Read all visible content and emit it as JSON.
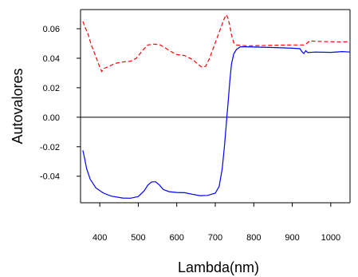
{
  "chart_data": {
    "type": "line",
    "title": "",
    "xlabel": "Lambda(nm)",
    "ylabel": "Autovalores",
    "xlim": [
      350,
      1050
    ],
    "ylim": [
      -0.058,
      0.073
    ],
    "grid": false,
    "legend": "none",
    "reference_line": {
      "y": 0.0,
      "color": "#000000"
    },
    "x_ticks": [
      {
        "value": 400,
        "label": "400"
      },
      {
        "value": 500,
        "label": "500"
      },
      {
        "value": 600,
        "label": "600"
      },
      {
        "value": 700,
        "label": "700"
      },
      {
        "value": 800,
        "label": "800"
      },
      {
        "value": 900,
        "label": "900"
      },
      {
        "value": 1000,
        "label": "1000"
      }
    ],
    "y_ticks": [
      {
        "value": 0.06,
        "label": "0.06"
      },
      {
        "value": 0.04,
        "label": "0.04"
      },
      {
        "value": 0.02,
        "label": "0.02"
      },
      {
        "value": 0.0,
        "label": "0.00"
      },
      {
        "value": -0.02,
        "label": "-0.02"
      },
      {
        "value": -0.04,
        "label": "-0.04"
      }
    ],
    "series": [
      {
        "color": "#0000ff",
        "style": "solid",
        "x": [
          356,
          360,
          366,
          375,
          390,
          410,
          430,
          460,
          480,
          500,
          515,
          525,
          535,
          545,
          555,
          565,
          580,
          600,
          620,
          640,
          660,
          680,
          700,
          710,
          718,
          724,
          730,
          734,
          738,
          742,
          748,
          755,
          765,
          780,
          800,
          850,
          900,
          920,
          925,
          930,
          935,
          940,
          960,
          1000,
          1030,
          1050
        ],
        "y": [
          -0.0225,
          -0.027,
          -0.035,
          -0.042,
          -0.048,
          -0.0515,
          -0.0535,
          -0.0548,
          -0.0549,
          -0.0538,
          -0.05,
          -0.046,
          -0.0438,
          -0.0438,
          -0.046,
          -0.049,
          -0.0505,
          -0.051,
          -0.0512,
          -0.0522,
          -0.0532,
          -0.053,
          -0.0515,
          -0.047,
          -0.035,
          -0.019,
          0.0,
          0.012,
          0.025,
          0.036,
          0.043,
          0.046,
          0.0478,
          0.0478,
          0.0476,
          0.0473,
          0.0468,
          0.0465,
          0.0445,
          0.0432,
          0.0452,
          0.0438,
          0.0442,
          0.044,
          0.0445,
          0.0442
        ]
      },
      {
        "color": "#ff0000",
        "style": "dashed",
        "x": [
          356,
          362,
          370,
          378,
          390,
          400,
          405,
          410,
          420,
          440,
          460,
          480,
          495,
          510,
          525,
          540,
          555,
          570,
          585,
          600,
          620,
          640,
          655,
          665,
          675,
          685,
          695,
          705,
          715,
          722,
          728,
          732,
          737,
          742,
          748,
          755,
          765,
          780,
          800,
          850,
          900,
          930,
          940,
          945,
          960,
          1000,
          1030,
          1050
        ],
        "y": [
          0.065,
          0.061,
          0.056,
          0.049,
          0.041,
          0.034,
          0.031,
          0.033,
          0.034,
          0.0365,
          0.0375,
          0.038,
          0.04,
          0.045,
          0.049,
          0.0495,
          0.0493,
          0.047,
          0.0445,
          0.0425,
          0.0418,
          0.0393,
          0.036,
          0.034,
          0.0345,
          0.04,
          0.047,
          0.054,
          0.061,
          0.066,
          0.0695,
          0.0678,
          0.063,
          0.056,
          0.0505,
          0.049,
          0.0488,
          0.0485,
          0.0485,
          0.0488,
          0.049,
          0.049,
          0.0505,
          0.0518,
          0.0515,
          0.0512,
          0.051,
          0.0513
        ]
      }
    ]
  }
}
